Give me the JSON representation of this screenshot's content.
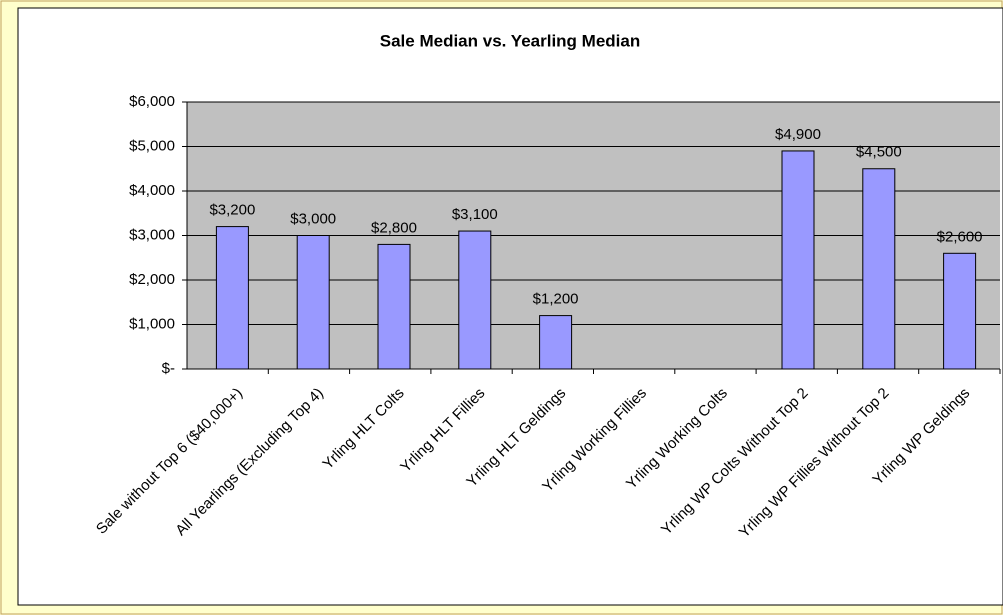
{
  "chart_data": {
    "type": "bar",
    "title": "Sale Median vs. Yearling Median",
    "categories": [
      "Sale without Top 6 ($40,000+)",
      "All Yearlings (Excluding Top 4)",
      "Yrling HLT Colts",
      "Yrling HLT Fillies",
      "Yrling HLT Geldings",
      "Yrling Working Fillies",
      "Yrling Working Colts",
      "Yrling WP Colts Without Top 2",
      "Yrling WP Fillies Without Top 2",
      "Yrling WP Geldings"
    ],
    "values": [
      3200,
      3000,
      2800,
      3100,
      1200,
      null,
      null,
      4900,
      4500,
      2600
    ],
    "value_labels": [
      "$3,200",
      "$3,000",
      "$2,800",
      "$3,100",
      "$1,200",
      null,
      null,
      "$4,900",
      "$4,500",
      "$2,600"
    ],
    "color": "#9999ff",
    "ylim": [
      0,
      6000
    ],
    "yticks": [
      {
        "value": 0,
        "label": "$-"
      },
      {
        "value": 1000,
        "label": "$1,000"
      },
      {
        "value": 2000,
        "label": "$2,000"
      },
      {
        "value": 3000,
        "label": "$3,000"
      },
      {
        "value": 4000,
        "label": "$4,000"
      },
      {
        "value": 5000,
        "label": "$5,000"
      },
      {
        "value": 6000,
        "label": "$6,000"
      }
    ],
    "grid": true
  }
}
